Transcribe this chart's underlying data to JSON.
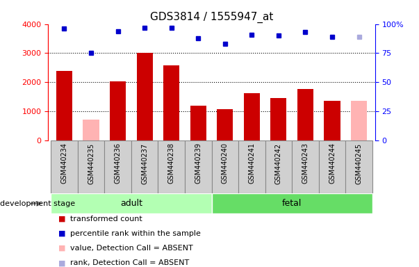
{
  "title": "GDS3814 / 1555947_at",
  "samples": [
    "GSM440234",
    "GSM440235",
    "GSM440236",
    "GSM440237",
    "GSM440238",
    "GSM440239",
    "GSM440240",
    "GSM440241",
    "GSM440242",
    "GSM440243",
    "GSM440244",
    "GSM440245"
  ],
  "bar_values": [
    2380,
    700,
    2030,
    3000,
    2580,
    1190,
    1060,
    1620,
    1450,
    1770,
    1360,
    1360
  ],
  "bar_absent": [
    false,
    true,
    false,
    false,
    false,
    false,
    false,
    false,
    false,
    false,
    false,
    true
  ],
  "rank_values": [
    96,
    75,
    94,
    97,
    97,
    88,
    83,
    91,
    90,
    93,
    89,
    89
  ],
  "rank_absent": [
    false,
    false,
    false,
    false,
    false,
    false,
    false,
    false,
    false,
    false,
    false,
    true
  ],
  "group_adult_indices": [
    0,
    1,
    2,
    3,
    4,
    5
  ],
  "group_fetal_indices": [
    6,
    7,
    8,
    9,
    10,
    11
  ],
  "bar_color_present": "#cc0000",
  "bar_color_absent": "#ffb3b3",
  "rank_color_present": "#0000cc",
  "rank_color_absent": "#aaaadd",
  "ylim_left": [
    0,
    4000
  ],
  "ylim_right": [
    0,
    100
  ],
  "yticks_left": [
    0,
    1000,
    2000,
    3000,
    4000
  ],
  "yticks_right": [
    0,
    25,
    50,
    75,
    100
  ],
  "adult_color": "#b3ffb3",
  "fetal_color": "#66dd66",
  "label_bg_color": "#d0d0d0",
  "legend_items": [
    {
      "label": "transformed count",
      "color": "#cc0000"
    },
    {
      "label": "percentile rank within the sample",
      "color": "#0000cc"
    },
    {
      "label": "value, Detection Call = ABSENT",
      "color": "#ffb3b3"
    },
    {
      "label": "rank, Detection Call = ABSENT",
      "color": "#aaaadd"
    }
  ]
}
